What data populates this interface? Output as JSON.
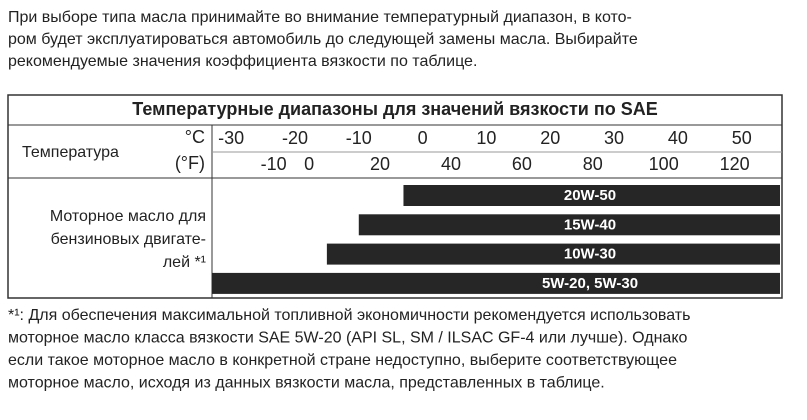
{
  "intro": [
    "При выборе типа масла принимайте во внимание температурный диапазон, в кото-",
    "ром будет эксплуатироваться автомобиль до следующей замены масла. Выбирайте",
    "рекомендуемые значения коэффициента вязкости по таблице."
  ],
  "table": {
    "title": "Температурные диапазоны для значений вязкости по SAE",
    "temp_label": "Температура",
    "c_unit": "°C",
    "f_unit": "(°F)",
    "c_ticks": [
      -30,
      -20,
      -10,
      0,
      10,
      20,
      30,
      40,
      50
    ],
    "f_ticks": [
      -10,
      0,
      20,
      40,
      60,
      80,
      100,
      120
    ],
    "range": [
      -33,
      56
    ],
    "oil_label": [
      "Моторное масло для",
      "бензиновых двигате-",
      "лей *¹"
    ],
    "bars": [
      {
        "label": "20W-50",
        "from": -3,
        "to": 56
      },
      {
        "label": "15W-40",
        "from": -10,
        "to": 56
      },
      {
        "label": "10W-30",
        "from": -15,
        "to": 56
      },
      {
        "label": "5W-20, 5W-30",
        "from": -33,
        "to": 56
      }
    ]
  },
  "footnote": [
    "*¹: Для обеспечения максимальной топливной экономичности рекомендуется использовать",
    "моторное масло класса вязкости SAE 5W-20 (API SL, SM / ILSAC GF-4 или лучше). Однако",
    "если такое моторное масло в конкретной стране недоступно, выберите соответствующее",
    "моторное масло, исходя из данных вязкости масла, представленных в таблице."
  ]
}
